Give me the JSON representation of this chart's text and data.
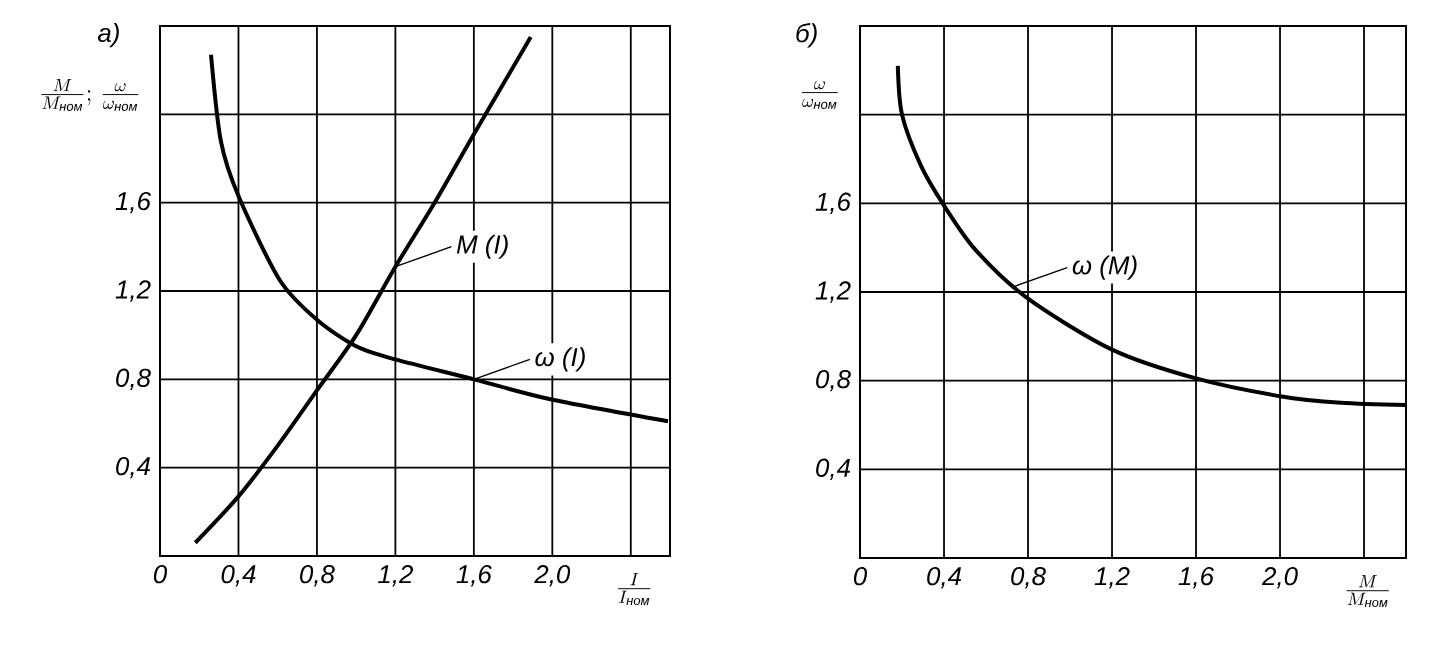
{
  "chart_data": [
    {
      "type": "line",
      "title": "а)",
      "xlabel": "\\frac{I}{I_{\\textit{ном}}}",
      "ylabel": "\\frac{M}{M_{\\textit{ном}}};\\,\\frac{\\omega}{\\omega_{\\textit{ном}}}",
      "xlim": [
        0,
        2.6
      ],
      "ylim": [
        0,
        2.4
      ],
      "xticks": [
        {
          "value": 0,
          "label": "0"
        },
        {
          "value": 0.4,
          "label": "0,4"
        },
        {
          "value": 0.8,
          "label": "0,8"
        },
        {
          "value": 1.2,
          "label": "1,2"
        },
        {
          "value": 1.6,
          "label": "1,6"
        },
        {
          "value": 2.0,
          "label": "2,0"
        },
        {
          "value": 2.4,
          "label": null
        }
      ],
      "yticks": [
        {
          "value": 0,
          "label": null
        },
        {
          "value": 0.4,
          "label": "0,4"
        },
        {
          "value": 0.8,
          "label": "0,8"
        },
        {
          "value": 1.2,
          "label": "1,2"
        },
        {
          "value": 1.6,
          "label": "1,6"
        },
        {
          "value": 2.0,
          "label": null
        },
        {
          "value": 2.4,
          "label": null
        }
      ],
      "grid": true,
      "series": [
        {
          "color": "#000000",
          "x": [
            0.18,
            0.4,
            0.6,
            0.8,
            1.0,
            1.2,
            1.4,
            1.6,
            1.89
          ],
          "values": [
            0.06,
            0.27,
            0.5,
            0.75,
            1.0,
            1.31,
            1.6,
            1.91,
            2.35
          ]
        },
        {
          "color": "#000000",
          "x": [
            0.26,
            0.31,
            0.4,
            0.61,
            0.8,
            1.0,
            1.2,
            1.6,
            1.99,
            2.59
          ],
          "values": [
            2.27,
            1.88,
            1.63,
            1.25,
            1.07,
            0.95,
            0.89,
            0.8,
            0.71,
            0.61
          ]
        }
      ],
      "annotations": [
        {
          "text": "M (I)",
          "x": 1.2,
          "y": 1.31
        },
        {
          "text": "ω (I)",
          "x": 1.6,
          "y": 0.8
        }
      ]
    },
    {
      "type": "line",
      "title": "б)",
      "xlabel": "\\frac{M}{M_{\\textit{ном}}}",
      "ylabel": "\\frac{\\omega}{\\omega_{\\textit{ном}}}",
      "xlim": [
        0,
        2.6
      ],
      "ylim": [
        0,
        2.4
      ],
      "xticks": [
        {
          "value": 0,
          "label": "0"
        },
        {
          "value": 0.4,
          "label": "0,4"
        },
        {
          "value": 0.8,
          "label": "0,8"
        },
        {
          "value": 1.2,
          "label": "1,2"
        },
        {
          "value": 1.6,
          "label": "1,6"
        },
        {
          "value": 2.0,
          "label": "2,0"
        },
        {
          "value": 2.4,
          "label": null
        }
      ],
      "yticks": [
        {
          "value": 0,
          "label": null
        },
        {
          "value": 0.4,
          "label": "0,4"
        },
        {
          "value": 0.8,
          "label": "0,8"
        },
        {
          "value": 1.2,
          "label": "1,2"
        },
        {
          "value": 1.6,
          "label": "1,6"
        },
        {
          "value": 2.0,
          "label": null
        },
        {
          "value": 2.4,
          "label": null
        }
      ],
      "grid": true,
      "series": [
        {
          "color": "#000000",
          "x": [
            0.18,
            0.2,
            0.29,
            0.4,
            0.55,
            0.8,
            1.2,
            1.6,
            2.0,
            2.29,
            2.6
          ],
          "values": [
            2.22,
            2.0,
            1.77,
            1.59,
            1.39,
            1.17,
            0.94,
            0.81,
            0.73,
            0.7,
            0.69
          ]
        }
      ],
      "annotations": [
        {
          "text": "ω (M)",
          "x": 0.72,
          "y": 1.22
        }
      ]
    }
  ]
}
